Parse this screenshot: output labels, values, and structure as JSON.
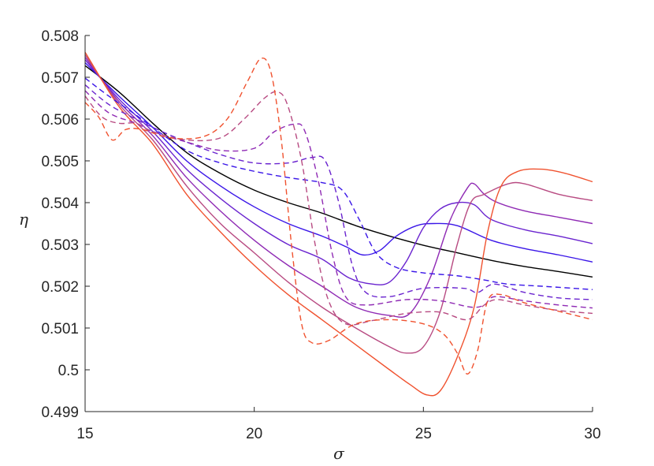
{
  "chart_data": {
    "type": "line",
    "xlabel": "σ",
    "ylabel": "η",
    "xlim": [
      15,
      30
    ],
    "ylim": [
      0.499,
      0.508
    ],
    "xticks": [
      15,
      20,
      25,
      30
    ],
    "xtick_labels": [
      "15",
      "20",
      "25",
      "30"
    ],
    "yticks": [
      0.499,
      0.5,
      0.501,
      0.502,
      0.503,
      0.504,
      0.505,
      0.506,
      0.507,
      0.508
    ],
    "ytick_labels": [
      "0.499",
      "0.5",
      "0.501",
      "0.502",
      "0.503",
      "0.504",
      "0.505",
      "0.506",
      "0.507",
      "0.508"
    ],
    "grid": false,
    "legend": "none",
    "series": [
      {
        "color": "#000000",
        "dash": "solid",
        "points": [
          [
            15,
            0.50728
          ],
          [
            16,
            0.50665
          ],
          [
            17,
            0.5059
          ],
          [
            18,
            0.5052
          ],
          [
            19,
            0.5047
          ],
          [
            20,
            0.5043
          ],
          [
            21,
            0.504
          ],
          [
            22,
            0.50375
          ],
          [
            23,
            0.50345
          ],
          [
            24,
            0.5032
          ],
          [
            25,
            0.50298
          ],
          [
            26,
            0.5028
          ],
          [
            27,
            0.50262
          ],
          [
            28,
            0.50247
          ],
          [
            29,
            0.50235
          ],
          [
            30,
            0.50222
          ]
        ]
      },
      {
        "color": "#3a16e8",
        "dash": "solid",
        "points": [
          [
            15,
            0.50735
          ],
          [
            16,
            0.50655
          ],
          [
            17,
            0.5058
          ],
          [
            18,
            0.505
          ],
          [
            19,
            0.5044
          ],
          [
            20,
            0.5039
          ],
          [
            21,
            0.5035
          ],
          [
            22,
            0.5032
          ],
          [
            22.7,
            0.50295
          ],
          [
            23.2,
            0.50275
          ],
          [
            23.7,
            0.50285
          ],
          [
            24.2,
            0.5032
          ],
          [
            24.8,
            0.50345
          ],
          [
            25.3,
            0.5035
          ],
          [
            26,
            0.50345
          ],
          [
            27,
            0.5031
          ],
          [
            28,
            0.5029
          ],
          [
            29,
            0.50275
          ],
          [
            30,
            0.50258
          ]
        ]
      },
      {
        "color": "#6a24cf",
        "dash": "solid",
        "points": [
          [
            15,
            0.50742
          ],
          [
            16,
            0.50648
          ],
          [
            17,
            0.5057
          ],
          [
            18,
            0.5048
          ],
          [
            19,
            0.5041
          ],
          [
            20,
            0.5035
          ],
          [
            21,
            0.503
          ],
          [
            22,
            0.50265
          ],
          [
            22.8,
            0.5022
          ],
          [
            23.5,
            0.50205
          ],
          [
            24,
            0.5021
          ],
          [
            24.5,
            0.5026
          ],
          [
            25,
            0.5034
          ],
          [
            25.5,
            0.50385
          ],
          [
            26,
            0.504
          ],
          [
            26.5,
            0.50395
          ],
          [
            27,
            0.5036
          ],
          [
            28,
            0.50335
          ],
          [
            29,
            0.5032
          ],
          [
            30,
            0.50302
          ]
        ]
      },
      {
        "color": "#8f2ab4",
        "dash": "solid",
        "points": [
          [
            15,
            0.50748
          ],
          [
            16,
            0.50642
          ],
          [
            17,
            0.5056
          ],
          [
            18,
            0.5046
          ],
          [
            19,
            0.5038
          ],
          [
            20,
            0.5031
          ],
          [
            21,
            0.5025
          ],
          [
            22,
            0.502
          ],
          [
            23,
            0.5015
          ],
          [
            24,
            0.5013
          ],
          [
            24.6,
            0.50135
          ],
          [
            25.2,
            0.5022
          ],
          [
            25.8,
            0.5036
          ],
          [
            26.3,
            0.50435
          ],
          [
            26.5,
            0.50445
          ],
          [
            26.8,
            0.5042
          ],
          [
            27.2,
            0.504
          ],
          [
            28,
            0.5038
          ],
          [
            29,
            0.50365
          ],
          [
            30,
            0.5035
          ]
        ]
      },
      {
        "color": "#b84b82",
        "dash": "solid",
        "points": [
          [
            15,
            0.50754
          ],
          [
            16,
            0.50636
          ],
          [
            17,
            0.5055
          ],
          [
            18,
            0.5044
          ],
          [
            19,
            0.5035
          ],
          [
            20,
            0.5028
          ],
          [
            21,
            0.5021
          ],
          [
            22,
            0.5015
          ],
          [
            23,
            0.501
          ],
          [
            24,
            0.50055
          ],
          [
            24.5,
            0.5004
          ],
          [
            25,
            0.50055
          ],
          [
            25.5,
            0.5014
          ],
          [
            26,
            0.503
          ],
          [
            26.4,
            0.504
          ],
          [
            26.8,
            0.5042
          ],
          [
            27.5,
            0.50445
          ],
          [
            28,
            0.50445
          ],
          [
            29,
            0.5042
          ],
          [
            30,
            0.50405
          ]
        ]
      },
      {
        "color": "#f0522f",
        "dash": "solid",
        "points": [
          [
            15,
            0.5076
          ],
          [
            16,
            0.5063
          ],
          [
            17,
            0.5054
          ],
          [
            18,
            0.5042
          ],
          [
            19,
            0.5033
          ],
          [
            20,
            0.5025
          ],
          [
            21,
            0.5018
          ],
          [
            22,
            0.5012
          ],
          [
            23,
            0.5006
          ],
          [
            24,
            0.5
          ],
          [
            24.6,
            0.49965
          ],
          [
            25.1,
            0.4994
          ],
          [
            25.5,
            0.4995
          ],
          [
            26,
            0.5003
          ],
          [
            26.5,
            0.5015
          ],
          [
            26.9,
            0.5033
          ],
          [
            27.3,
            0.5044
          ],
          [
            27.8,
            0.50475
          ],
          [
            28.5,
            0.5048
          ],
          [
            29.2,
            0.5047
          ],
          [
            30,
            0.5045
          ]
        ]
      },
      {
        "color": "#3a16e8",
        "dash": "dashed",
        "points": [
          [
            15,
            0.50698
          ],
          [
            15.7,
            0.50655
          ],
          [
            16.5,
            0.5061
          ],
          [
            17,
            0.5058
          ],
          [
            18,
            0.50525
          ],
          [
            19,
            0.50495
          ],
          [
            20,
            0.50475
          ],
          [
            21,
            0.5046
          ],
          [
            22,
            0.50448
          ],
          [
            22.6,
            0.5043
          ],
          [
            23.1,
            0.5036
          ],
          [
            23.6,
            0.5028
          ],
          [
            24.2,
            0.50245
          ],
          [
            25,
            0.50232
          ],
          [
            26,
            0.50225
          ],
          [
            26.8,
            0.50215
          ],
          [
            27.5,
            0.50205
          ],
          [
            28.5,
            0.502
          ],
          [
            30,
            0.50192
          ]
        ]
      },
      {
        "color": "#6a24cf",
        "dash": "dashed",
        "points": [
          [
            15,
            0.50682
          ],
          [
            15.7,
            0.50635
          ],
          [
            16.5,
            0.506
          ],
          [
            17,
            0.5058
          ],
          [
            18,
            0.50545
          ],
          [
            19,
            0.50515
          ],
          [
            20,
            0.50495
          ],
          [
            21,
            0.50495
          ],
          [
            21.7,
            0.50508
          ],
          [
            22.1,
            0.505
          ],
          [
            22.5,
            0.504
          ],
          [
            22.9,
            0.5025
          ],
          [
            23.3,
            0.50185
          ],
          [
            24,
            0.50175
          ],
          [
            25,
            0.50195
          ],
          [
            26.2,
            0.50195
          ],
          [
            26.6,
            0.50185
          ],
          [
            27.1,
            0.50205
          ],
          [
            28,
            0.50185
          ],
          [
            29,
            0.50172
          ],
          [
            30,
            0.50168
          ]
        ]
      },
      {
        "color": "#8f2ab4",
        "dash": "dashed",
        "points": [
          [
            15,
            0.50668
          ],
          [
            15.7,
            0.50615
          ],
          [
            16.5,
            0.5059
          ],
          [
            17,
            0.5057
          ],
          [
            18,
            0.50545
          ],
          [
            19,
            0.50525
          ],
          [
            20,
            0.5053
          ],
          [
            20.6,
            0.5057
          ],
          [
            21.2,
            0.50588
          ],
          [
            21.5,
            0.5057
          ],
          [
            21.9,
            0.5045
          ],
          [
            22.3,
            0.5028
          ],
          [
            22.7,
            0.50175
          ],
          [
            23.3,
            0.50155
          ],
          [
            24.5,
            0.50168
          ],
          [
            25.5,
            0.50165
          ],
          [
            26.4,
            0.5015
          ],
          [
            26.8,
            0.50155
          ],
          [
            27.1,
            0.50175
          ],
          [
            28,
            0.50165
          ],
          [
            29,
            0.50155
          ],
          [
            30,
            0.50148
          ]
        ]
      },
      {
        "color": "#b84b82",
        "dash": "dashed",
        "points": [
          [
            15,
            0.50655
          ],
          [
            15.5,
            0.50605
          ],
          [
            16,
            0.5059
          ],
          [
            16.5,
            0.5059
          ],
          [
            17,
            0.5057
          ],
          [
            18,
            0.5055
          ],
          [
            19,
            0.50555
          ],
          [
            19.7,
            0.506
          ],
          [
            20.3,
            0.5065
          ],
          [
            20.7,
            0.50665
          ],
          [
            21.0,
            0.5063
          ],
          [
            21.4,
            0.505
          ],
          [
            21.8,
            0.503
          ],
          [
            22.2,
            0.50165
          ],
          [
            22.7,
            0.5011
          ],
          [
            23.5,
            0.50118
          ],
          [
            24.5,
            0.50135
          ],
          [
            25.5,
            0.50138
          ],
          [
            26.3,
            0.5012
          ],
          [
            26.8,
            0.50155
          ],
          [
            27.2,
            0.50168
          ],
          [
            28,
            0.50155
          ],
          [
            29,
            0.50142
          ],
          [
            30,
            0.50135
          ]
        ]
      },
      {
        "color": "#f0522f",
        "dash": "dashed",
        "points": [
          [
            15,
            0.5064
          ],
          [
            15.4,
            0.50605
          ],
          [
            15.8,
            0.5055
          ],
          [
            16.2,
            0.50575
          ],
          [
            16.7,
            0.50575
          ],
          [
            17.5,
            0.50555
          ],
          [
            18.5,
            0.50558
          ],
          [
            19.2,
            0.506
          ],
          [
            19.8,
            0.5069
          ],
          [
            20.2,
            0.50745
          ],
          [
            20.5,
            0.5071
          ],
          [
            20.8,
            0.5055
          ],
          [
            21.1,
            0.503
          ],
          [
            21.4,
            0.5011
          ],
          [
            21.7,
            0.50065
          ],
          [
            22.2,
            0.5007
          ],
          [
            23,
            0.5011
          ],
          [
            24,
            0.5012
          ],
          [
            25,
            0.5011
          ],
          [
            25.6,
            0.50085
          ],
          [
            26.0,
            0.5004
          ],
          [
            26.3,
            0.4999
          ],
          [
            26.6,
            0.50045
          ],
          [
            26.9,
            0.50165
          ],
          [
            27.3,
            0.5018
          ],
          [
            28,
            0.5016
          ],
          [
            29,
            0.5014
          ],
          [
            30,
            0.5012
          ]
        ]
      }
    ]
  }
}
